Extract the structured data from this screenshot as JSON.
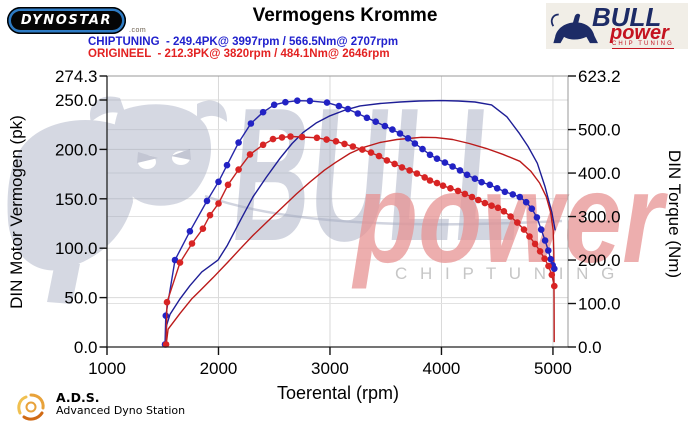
{
  "header": {
    "brand": {
      "name": "DYNOSTAR",
      "suffix": ".com"
    },
    "title": "Vermogens Kromme",
    "legend": [
      {
        "text": "CHIPTUNING  - 249.4PK@ 3997rpm / 566.5Nm@ 2707rpm",
        "color": "#2121cd"
      },
      {
        "text": "ORIGINEEL  - 212.3PK@ 3820rpm / 484.1Nm@ 2646rpm",
        "color": "#e32222"
      }
    ],
    "bullpower_logo": {
      "word1": "BULL",
      "word2": "power",
      "word3": "CHIP TUNING"
    }
  },
  "footer": {
    "ads_abbr": "A.D.S.",
    "ads_name": "Advanced Dyno Station"
  },
  "watermark": {
    "word1": "BULL",
    "word2": "power",
    "word3": "C H I P   T U N I N G"
  },
  "chart_data": {
    "type": "line",
    "title": "Vermogens Kromme",
    "xlabel": "Toerental (rpm)",
    "ylabel_left": "DIN Motor Vermogen (pk)",
    "ylabel_right": "DIN Torque (Nm)",
    "grid": true,
    "legend_position": "top",
    "xlim": [
      1000,
      5135
    ],
    "x_ticks": [
      {
        "v": 1000,
        "label": "1000"
      },
      {
        "v": 2000,
        "label": "2000"
      },
      {
        "v": 3000,
        "label": "3000"
      },
      {
        "v": 4000,
        "label": "4000"
      },
      {
        "v": 5000,
        "label": "5000"
      }
    ],
    "left_axis": {
      "max": 274.3,
      "ticks": [
        {
          "v": 0,
          "label": "0.0"
        },
        {
          "v": 50,
          "label": "50.0"
        },
        {
          "v": 100,
          "label": "100.0"
        },
        {
          "v": 150,
          "label": "150.0"
        },
        {
          "v": 200,
          "label": "200.0"
        },
        {
          "v": 250,
          "label": "250.0"
        },
        {
          "v": 274.3,
          "label": "274.3"
        }
      ]
    },
    "right_axis": {
      "max": 623.2,
      "ticks": [
        {
          "v": 0,
          "label": "0.0"
        },
        {
          "v": 100,
          "label": "100.0"
        },
        {
          "v": 200,
          "label": "200.0"
        },
        {
          "v": 300,
          "label": "300.0"
        },
        {
          "v": 400,
          "label": "400.0"
        },
        {
          "v": 500,
          "label": "500.0"
        },
        {
          "v": 623.2,
          "label": "623.2"
        }
      ]
    },
    "series": [
      {
        "name": "CHIPTUNING vermogen (pk)",
        "axis": "left",
        "color": "#1e1e96",
        "marker": false,
        "peak": "249.4PK@ 3997rpm",
        "points": [
          [
            1520,
            2
          ],
          [
            1535,
            22
          ],
          [
            1565,
            33
          ],
          [
            1650,
            48
          ],
          [
            1744,
            62
          ],
          [
            1850,
            76
          ],
          [
            1996,
            88
          ],
          [
            2080,
            103
          ],
          [
            2200,
            129
          ],
          [
            2310,
            152
          ],
          [
            2430,
            172
          ],
          [
            2552,
            191
          ],
          [
            2660,
            206
          ],
          [
            2758,
            217
          ],
          [
            2880,
            227
          ],
          [
            3000,
            234
          ],
          [
            3140,
            240
          ],
          [
            3269,
            244
          ],
          [
            3450,
            246.5
          ],
          [
            3628,
            248
          ],
          [
            3800,
            249
          ],
          [
            3997,
            249.4
          ],
          [
            4150,
            249
          ],
          [
            4300,
            248
          ],
          [
            4450,
            245
          ],
          [
            4587,
            233
          ],
          [
            4700,
            216
          ],
          [
            4776,
            203
          ],
          [
            4860,
            186
          ],
          [
            4930,
            162
          ],
          [
            4991,
            136
          ],
          [
            5020,
            118
          ]
        ]
      },
      {
        "name": "ORIGINEEL vermogen (pk)",
        "axis": "left",
        "color": "#bb1a1a",
        "marker": false,
        "peak": "212.3PK@ 3820rpm",
        "points": [
          [
            1530,
            2
          ],
          [
            1548,
            18
          ],
          [
            1655,
            34
          ],
          [
            1762,
            49
          ],
          [
            1834,
            57
          ],
          [
            1950,
            70
          ],
          [
            2085,
            86
          ],
          [
            2200,
            100
          ],
          [
            2310,
            113
          ],
          [
            2430,
            126
          ],
          [
            2550,
            139
          ],
          [
            2700,
            155
          ],
          [
            2821,
            167
          ],
          [
            2950,
            179
          ],
          [
            3054,
            187
          ],
          [
            3179,
            196
          ],
          [
            3300,
            202
          ],
          [
            3448,
            207
          ],
          [
            3600,
            210
          ],
          [
            3820,
            212.3
          ],
          [
            3950,
            212
          ],
          [
            4100,
            210
          ],
          [
            4250,
            206
          ],
          [
            4400,
            201
          ],
          [
            4550,
            195
          ],
          [
            4704,
            188
          ],
          [
            4800,
            178
          ],
          [
            4880,
            166
          ],
          [
            4940,
            152
          ],
          [
            4980,
            136
          ],
          [
            5002,
            118
          ],
          [
            5008,
            96
          ],
          [
            5010,
            40
          ],
          [
            5011,
            5
          ]
        ]
      },
      {
        "name": "CHIPTUNING koppel (Nm)",
        "axis": "right",
        "color": "#2626a8",
        "marker": true,
        "marker_color": "#2222c4",
        "peak": "566.5Nm@ 2707rpm",
        "points": [
          [
            1520,
            6
          ],
          [
            1527,
            72
          ],
          [
            1610,
            200
          ],
          [
            1744,
            266
          ],
          [
            1897,
            336
          ],
          [
            2000,
            380
          ],
          [
            2076,
            418
          ],
          [
            2180,
            470
          ],
          [
            2291,
            514
          ],
          [
            2400,
            540
          ],
          [
            2500,
            557
          ],
          [
            2600,
            563
          ],
          [
            2707,
            566.5
          ],
          [
            2820,
            566
          ],
          [
            2973,
            562
          ],
          [
            3080,
            554
          ],
          [
            3161,
            547
          ],
          [
            3250,
            537
          ],
          [
            3331,
            527
          ],
          [
            3410,
            518
          ],
          [
            3493,
            508
          ],
          [
            3560,
            500
          ],
          [
            3628,
            491
          ],
          [
            3700,
            480
          ],
          [
            3762,
            468
          ],
          [
            3830,
            455
          ],
          [
            3897,
            442
          ],
          [
            3960,
            433
          ],
          [
            4031,
            424
          ],
          [
            4100,
            415
          ],
          [
            4166,
            406
          ],
          [
            4230,
            396
          ],
          [
            4300,
            387
          ],
          [
            4360,
            379
          ],
          [
            4434,
            373
          ],
          [
            4500,
            365
          ],
          [
            4569,
            357
          ],
          [
            4640,
            351
          ],
          [
            4703,
            345
          ],
          [
            4760,
            333
          ],
          [
            4810,
            318
          ],
          [
            4856,
            298
          ],
          [
            4895,
            270
          ],
          [
            4930,
            245
          ],
          [
            4958,
            222
          ],
          [
            4980,
            202
          ],
          [
            4998,
            188
          ],
          [
            5012,
            180
          ]
        ]
      },
      {
        "name": "ORIGINEEL koppel (Nm)",
        "axis": "right",
        "color": "#c32222",
        "marker": true,
        "marker_color": "#d82424",
        "peak": "484.1Nm@ 2646rpm",
        "points": [
          [
            1530,
            6
          ],
          [
            1538,
            103
          ],
          [
            1655,
            194
          ],
          [
            1762,
            238
          ],
          [
            1860,
            272
          ],
          [
            1924,
            303
          ],
          [
            2000,
            330
          ],
          [
            2085,
            373
          ],
          [
            2180,
            408
          ],
          [
            2283,
            443
          ],
          [
            2400,
            465
          ],
          [
            2489,
            478
          ],
          [
            2570,
            482
          ],
          [
            2646,
            484.1
          ],
          [
            2750,
            483
          ],
          [
            2883,
            481
          ],
          [
            2970,
            477
          ],
          [
            3054,
            473
          ],
          [
            3130,
            467
          ],
          [
            3206,
            461
          ],
          [
            3290,
            454
          ],
          [
            3368,
            447
          ],
          [
            3440,
            439
          ],
          [
            3511,
            429
          ],
          [
            3580,
            421
          ],
          [
            3646,
            413
          ],
          [
            3714,
            406
          ],
          [
            3780,
            399
          ],
          [
            3850,
            390
          ],
          [
            3897,
            383
          ],
          [
            3960,
            377
          ],
          [
            4014,
            371
          ],
          [
            4080,
            365
          ],
          [
            4148,
            359
          ],
          [
            4210,
            352
          ],
          [
            4274,
            345
          ],
          [
            4330,
            338
          ],
          [
            4390,
            331
          ],
          [
            4450,
            325
          ],
          [
            4507,
            320
          ],
          [
            4560,
            312
          ],
          [
            4620,
            300
          ],
          [
            4680,
            286
          ],
          [
            4740,
            270
          ],
          [
            4790,
            254
          ],
          [
            4840,
            237
          ],
          [
            4885,
            220
          ],
          [
            4925,
            203
          ],
          [
            4960,
            186
          ],
          [
            4990,
            166
          ],
          [
            5012,
            140
          ]
        ]
      }
    ]
  }
}
